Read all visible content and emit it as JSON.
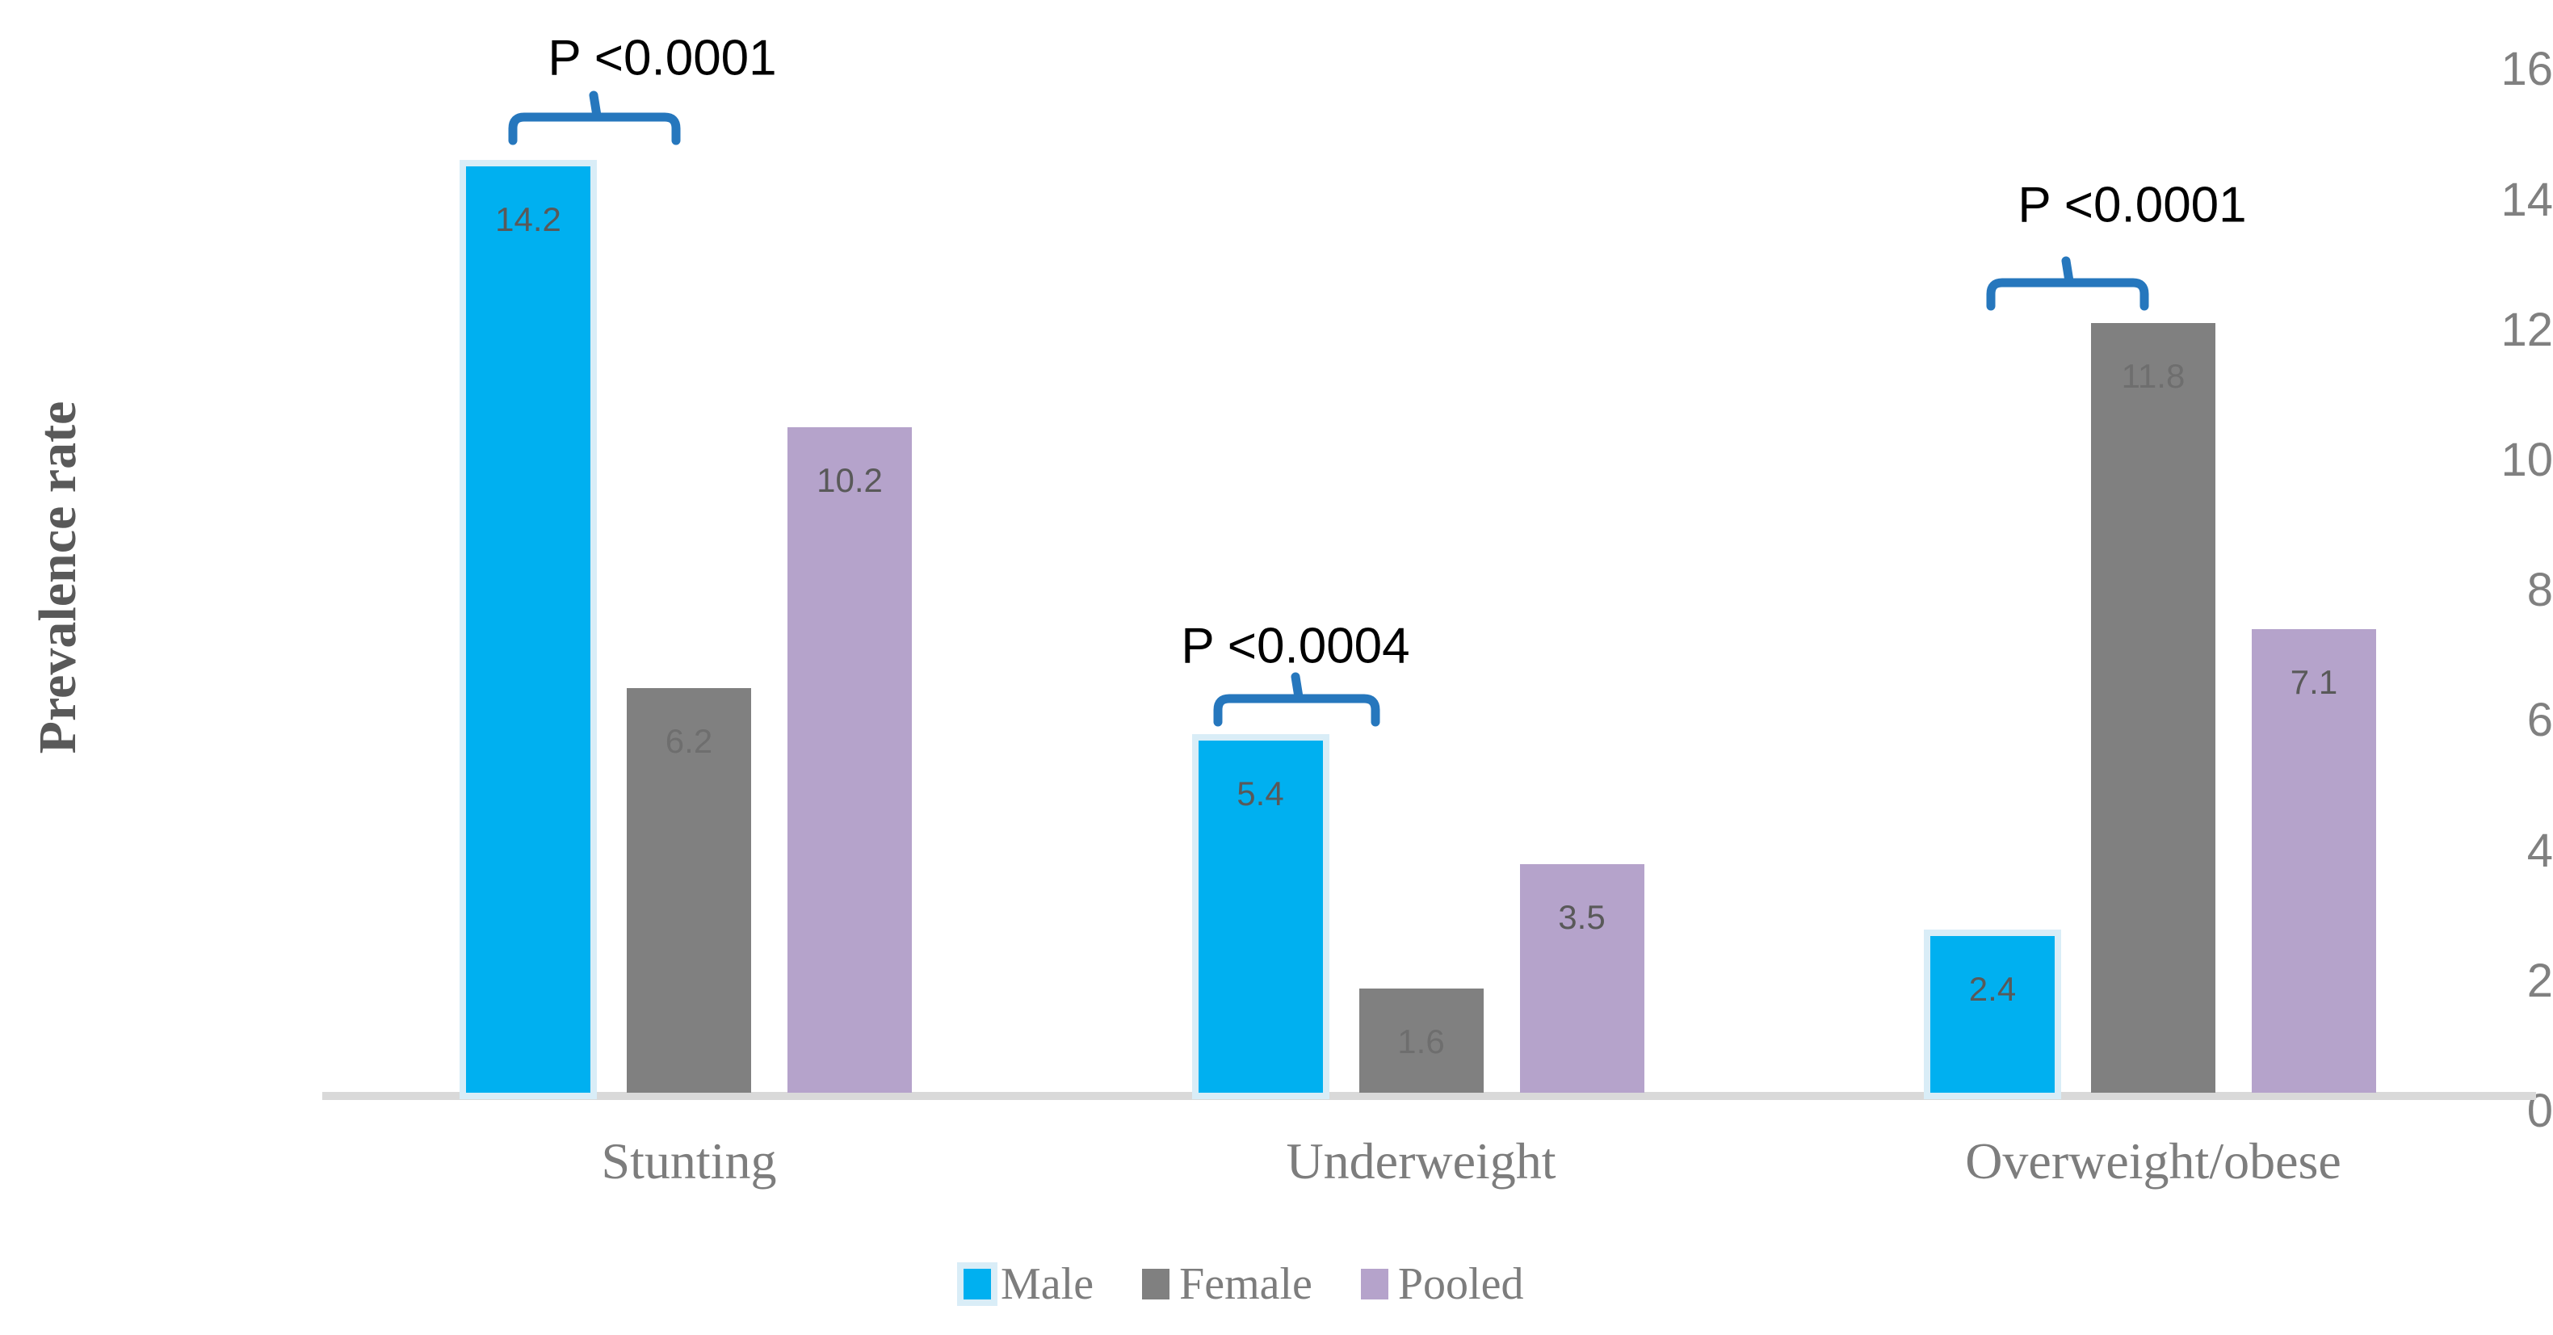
{
  "chart_data": {
    "type": "bar",
    "title": "",
    "xlabel": "",
    "ylabel": "Prevalence rate",
    "ylim": [
      0,
      16
    ],
    "yticks": [
      0,
      2,
      4,
      6,
      8,
      10,
      12,
      14,
      16
    ],
    "grid": false,
    "legend_position": "bottom",
    "categories": [
      "Stunting",
      "Underweight",
      "Overweight/obese"
    ],
    "series": [
      {
        "name": "Male",
        "color": "#00b0f0",
        "halo_color": "#d9edf7",
        "values": [
          14.2,
          5.4,
          2.4
        ]
      },
      {
        "name": "Female",
        "color": "#808080",
        "values": [
          6.2,
          1.6,
          11.8
        ]
      },
      {
        "name": "Pooled",
        "color": "#b5a3cb",
        "values": [
          10.2,
          3.5,
          7.1
        ]
      }
    ],
    "annotations": [
      {
        "text": "P <0.0001",
        "compares": [
          "Male",
          "Female"
        ],
        "category": "Stunting",
        "x_left": 635,
        "x_right": 837,
        "y_line": 145,
        "tick_x": 737,
        "text_x": 820,
        "text_y": 72
      },
      {
        "text": "P <0.0004",
        "compares": [
          "Male",
          "Female"
        ],
        "category": "Underweight",
        "x_left": 1508,
        "x_right": 1703,
        "y_line": 865,
        "tick_x": 1606,
        "text_x": 1604,
        "text_y": 800
      },
      {
        "text": "P <0.0001",
        "compares": [
          "Male",
          "Female"
        ],
        "category": "Overweight/obese",
        "x_left": 2465,
        "x_right": 2655,
        "y_line": 350,
        "tick_x": 2560,
        "text_x": 2640,
        "text_y": 254
      }
    ],
    "colors": {
      "bracket": "#2677bd",
      "axis_line": "#d9d9d9",
      "tick_label": "#808080",
      "category_label": "#7d7d7d",
      "data_label": "#595959",
      "y_title": "#595959",
      "p_text": "#000000"
    }
  }
}
